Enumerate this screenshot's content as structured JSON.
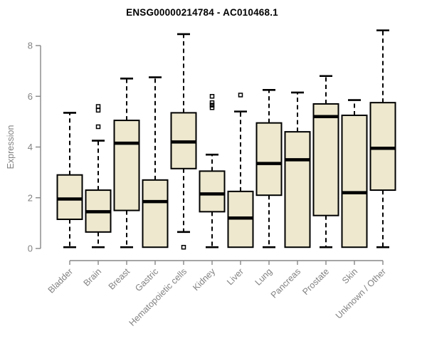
{
  "title": "ENSG00000214784 - AC010468.1",
  "chart_data": {
    "type": "boxplot",
    "title": "ENSG00000214784 - AC010468.1",
    "xlabel": "",
    "ylabel": "Expression",
    "ylim": [
      0,
      8.7
    ],
    "yticks": [
      0,
      2,
      4,
      6,
      8
    ],
    "grid": false,
    "legend": "none",
    "categories": [
      "Bladder",
      "Brain",
      "Breast",
      "Gastric",
      "Hematopoietic cells",
      "Kidney",
      "Liver",
      "Lung",
      "Pancreas",
      "Prostate",
      "Skin",
      "Unknown / Other"
    ],
    "boxes": [
      {
        "category": "Bladder",
        "low": 0.05,
        "q1": 1.15,
        "median": 1.95,
        "q3": 2.9,
        "high": 5.35,
        "outliers": []
      },
      {
        "category": "Brain",
        "low": 0.05,
        "q1": 0.65,
        "median": 1.45,
        "q3": 2.3,
        "high": 4.25,
        "outliers": [
          4.8,
          5.45,
          5.6
        ]
      },
      {
        "category": "Breast",
        "low": 0.05,
        "q1": 1.5,
        "median": 4.15,
        "q3": 5.05,
        "high": 6.7,
        "outliers": []
      },
      {
        "category": "Gastric",
        "low": 0.05,
        "q1": 0.05,
        "median": 1.85,
        "q3": 2.7,
        "high": 6.75,
        "outliers": []
      },
      {
        "category": "Hematopoietic cells",
        "low": 0.65,
        "q1": 3.15,
        "median": 4.2,
        "q3": 5.35,
        "high": 8.45,
        "outliers": [
          0.05
        ]
      },
      {
        "category": "Kidney",
        "low": 0.05,
        "q1": 1.45,
        "median": 2.15,
        "q3": 3.05,
        "high": 3.7,
        "outliers": [
          5.55,
          5.65,
          5.75,
          6.0
        ]
      },
      {
        "category": "Liver",
        "low": 0.05,
        "q1": 0.05,
        "median": 1.2,
        "q3": 2.25,
        "high": 5.4,
        "outliers": [
          6.05
        ]
      },
      {
        "category": "Lung",
        "low": 0.05,
        "q1": 2.1,
        "median": 3.35,
        "q3": 4.95,
        "high": 6.25,
        "outliers": []
      },
      {
        "category": "Pancreas",
        "low": 0.05,
        "q1": 0.05,
        "median": 3.5,
        "q3": 4.6,
        "high": 6.15,
        "outliers": []
      },
      {
        "category": "Prostate",
        "low": 0.05,
        "q1": 1.3,
        "median": 5.2,
        "q3": 5.7,
        "high": 6.8,
        "outliers": []
      },
      {
        "category": "Skin",
        "low": 0.05,
        "q1": 0.05,
        "median": 2.2,
        "q3": 5.25,
        "high": 5.85,
        "outliers": []
      },
      {
        "category": "Unknown / Other",
        "low": 0.05,
        "q1": 2.3,
        "median": 3.95,
        "q3": 5.75,
        "high": 8.6,
        "outliers": []
      }
    ],
    "colors": {
      "box_fill": "#EDE8CE",
      "box_stroke": "#000000",
      "median": "#000000",
      "whisker": "#000000",
      "axis": "#878787",
      "tick_text": "#828282",
      "title_text": "#000000",
      "background": "#FFFFFF"
    }
  }
}
